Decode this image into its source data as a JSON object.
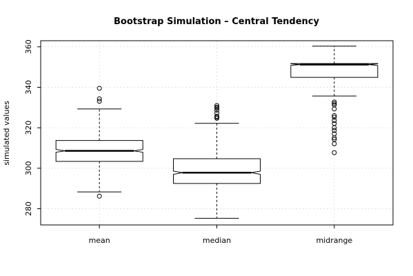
{
  "chart_data": {
    "type": "boxplot",
    "title": "Bootstrap Simulation – Central Tendency",
    "xlabel": "",
    "ylabel": "simulated values",
    "ylim": [
      272,
      363
    ],
    "yticks": [
      280,
      300,
      320,
      340,
      360
    ],
    "grid": true,
    "notched": true,
    "categories": [
      "mean",
      "median",
      "midrange"
    ],
    "series": [
      {
        "category": "mean",
        "whisker_low": 288.3,
        "q1": 303.4,
        "median": 308.6,
        "q3": 313.7,
        "whisker_high": 329.3,
        "notch_low": 307.9,
        "notch_high": 309.3,
        "outliers": [
          286.2,
          333.1,
          334.3,
          339.5
        ]
      },
      {
        "category": "median",
        "whisker_low": 275.3,
        "q1": 292.5,
        "median": 297.8,
        "q3": 304.7,
        "whisker_high": 322.2,
        "notch_low": 297.0,
        "notch_high": 298.6,
        "outliers": [
          324.7,
          325.2,
          325.7,
          327.2,
          328.7,
          329.7,
          330.2,
          331.0
        ]
      },
      {
        "category": "midrange",
        "whisker_low": 335.7,
        "q1": 344.9,
        "median": 351.2,
        "q3": 351.7,
        "whisker_high": 360.3,
        "notch_low": 350.8,
        "notch_high": 351.6,
        "outliers": [
          307.7,
          312.1,
          314.2,
          315.0,
          317.0,
          318.7,
          320.0,
          322.1,
          323.6,
          325.2,
          326.0,
          329.3,
          331.3,
          332.0,
          332.7
        ]
      }
    ]
  }
}
